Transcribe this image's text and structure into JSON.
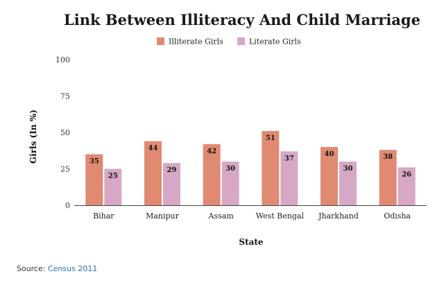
{
  "chart_data": {
    "type": "bar",
    "title": "Link Between Illiteracy And Child Marriage",
    "xlabel": "State",
    "ylabel": "Girls (In %)",
    "categories": [
      "Bihar",
      "Manipur",
      "Assam",
      "West Bengal",
      "Jharkhand",
      "Odisha"
    ],
    "series": [
      {
        "name": "Illiterate Girls",
        "values": [
          35,
          44,
          42,
          51,
          40,
          38
        ],
        "color": "#e08a72"
      },
      {
        "name": "Literate Girls",
        "values": [
          25,
          29,
          30,
          37,
          30,
          26
        ],
        "color": "#d6a8c5"
      }
    ],
    "ylim": [
      0,
      100
    ],
    "yticks": [
      0,
      25,
      50,
      75,
      100
    ],
    "grid": false,
    "legend": "top-center",
    "data_labels": true
  },
  "footer": {
    "source_label": "Source:",
    "source_link": "Census 2011"
  }
}
